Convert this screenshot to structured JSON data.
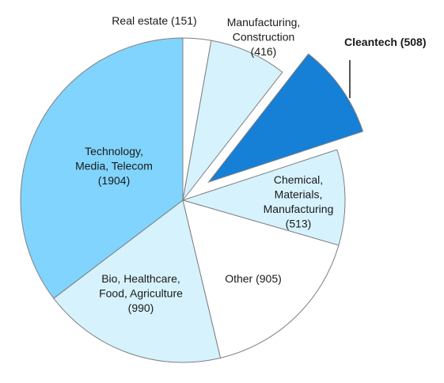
{
  "chart_data": {
    "type": "pie",
    "title": "",
    "slices": [
      {
        "name": "Real estate",
        "value": 151,
        "label_lines": [
          "Real estate (151)"
        ],
        "color": "#ffffff",
        "explode": 0,
        "bold": false
      },
      {
        "name": "Manufacturing, Construction",
        "value": 416,
        "label_lines": [
          "Manufacturing,",
          "Construction",
          "(416)"
        ],
        "color": "#d6f2fd",
        "explode": 0,
        "bold": false
      },
      {
        "name": "Cleantech",
        "value": 508,
        "label_lines": [
          "Cleantech (508)"
        ],
        "color": "#167fd6",
        "explode": 1,
        "bold": true
      },
      {
        "name": "Chemical, Materials, Manufacturing",
        "value": 513,
        "label_lines": [
          "Chemical,",
          "Materials,",
          "Manufacturing",
          "(513)"
        ],
        "color": "#d6f2fd",
        "explode": 0,
        "bold": false
      },
      {
        "name": "Other",
        "value": 905,
        "label_lines": [
          "Other (905)"
        ],
        "color": "#ffffff",
        "explode": 0,
        "bold": false
      },
      {
        "name": "Bio, Healthcare, Food, Agriculture",
        "value": 990,
        "label_lines": [
          "Bio, Healthcare,",
          "Food, Agriculture",
          "(990)"
        ],
        "color": "#d6f2fd",
        "explode": 0,
        "bold": false
      },
      {
        "name": "Technology, Media, Telecom",
        "value": 1904,
        "label_lines": [
          "Technology,",
          "Media, Telecom",
          "(1904)"
        ],
        "color": "#80d4fd",
        "explode": 0,
        "bold": false
      }
    ],
    "start_direction": "top",
    "direction": "clockwise",
    "legend": "none",
    "slice_border_color": "#7f7f7f"
  }
}
